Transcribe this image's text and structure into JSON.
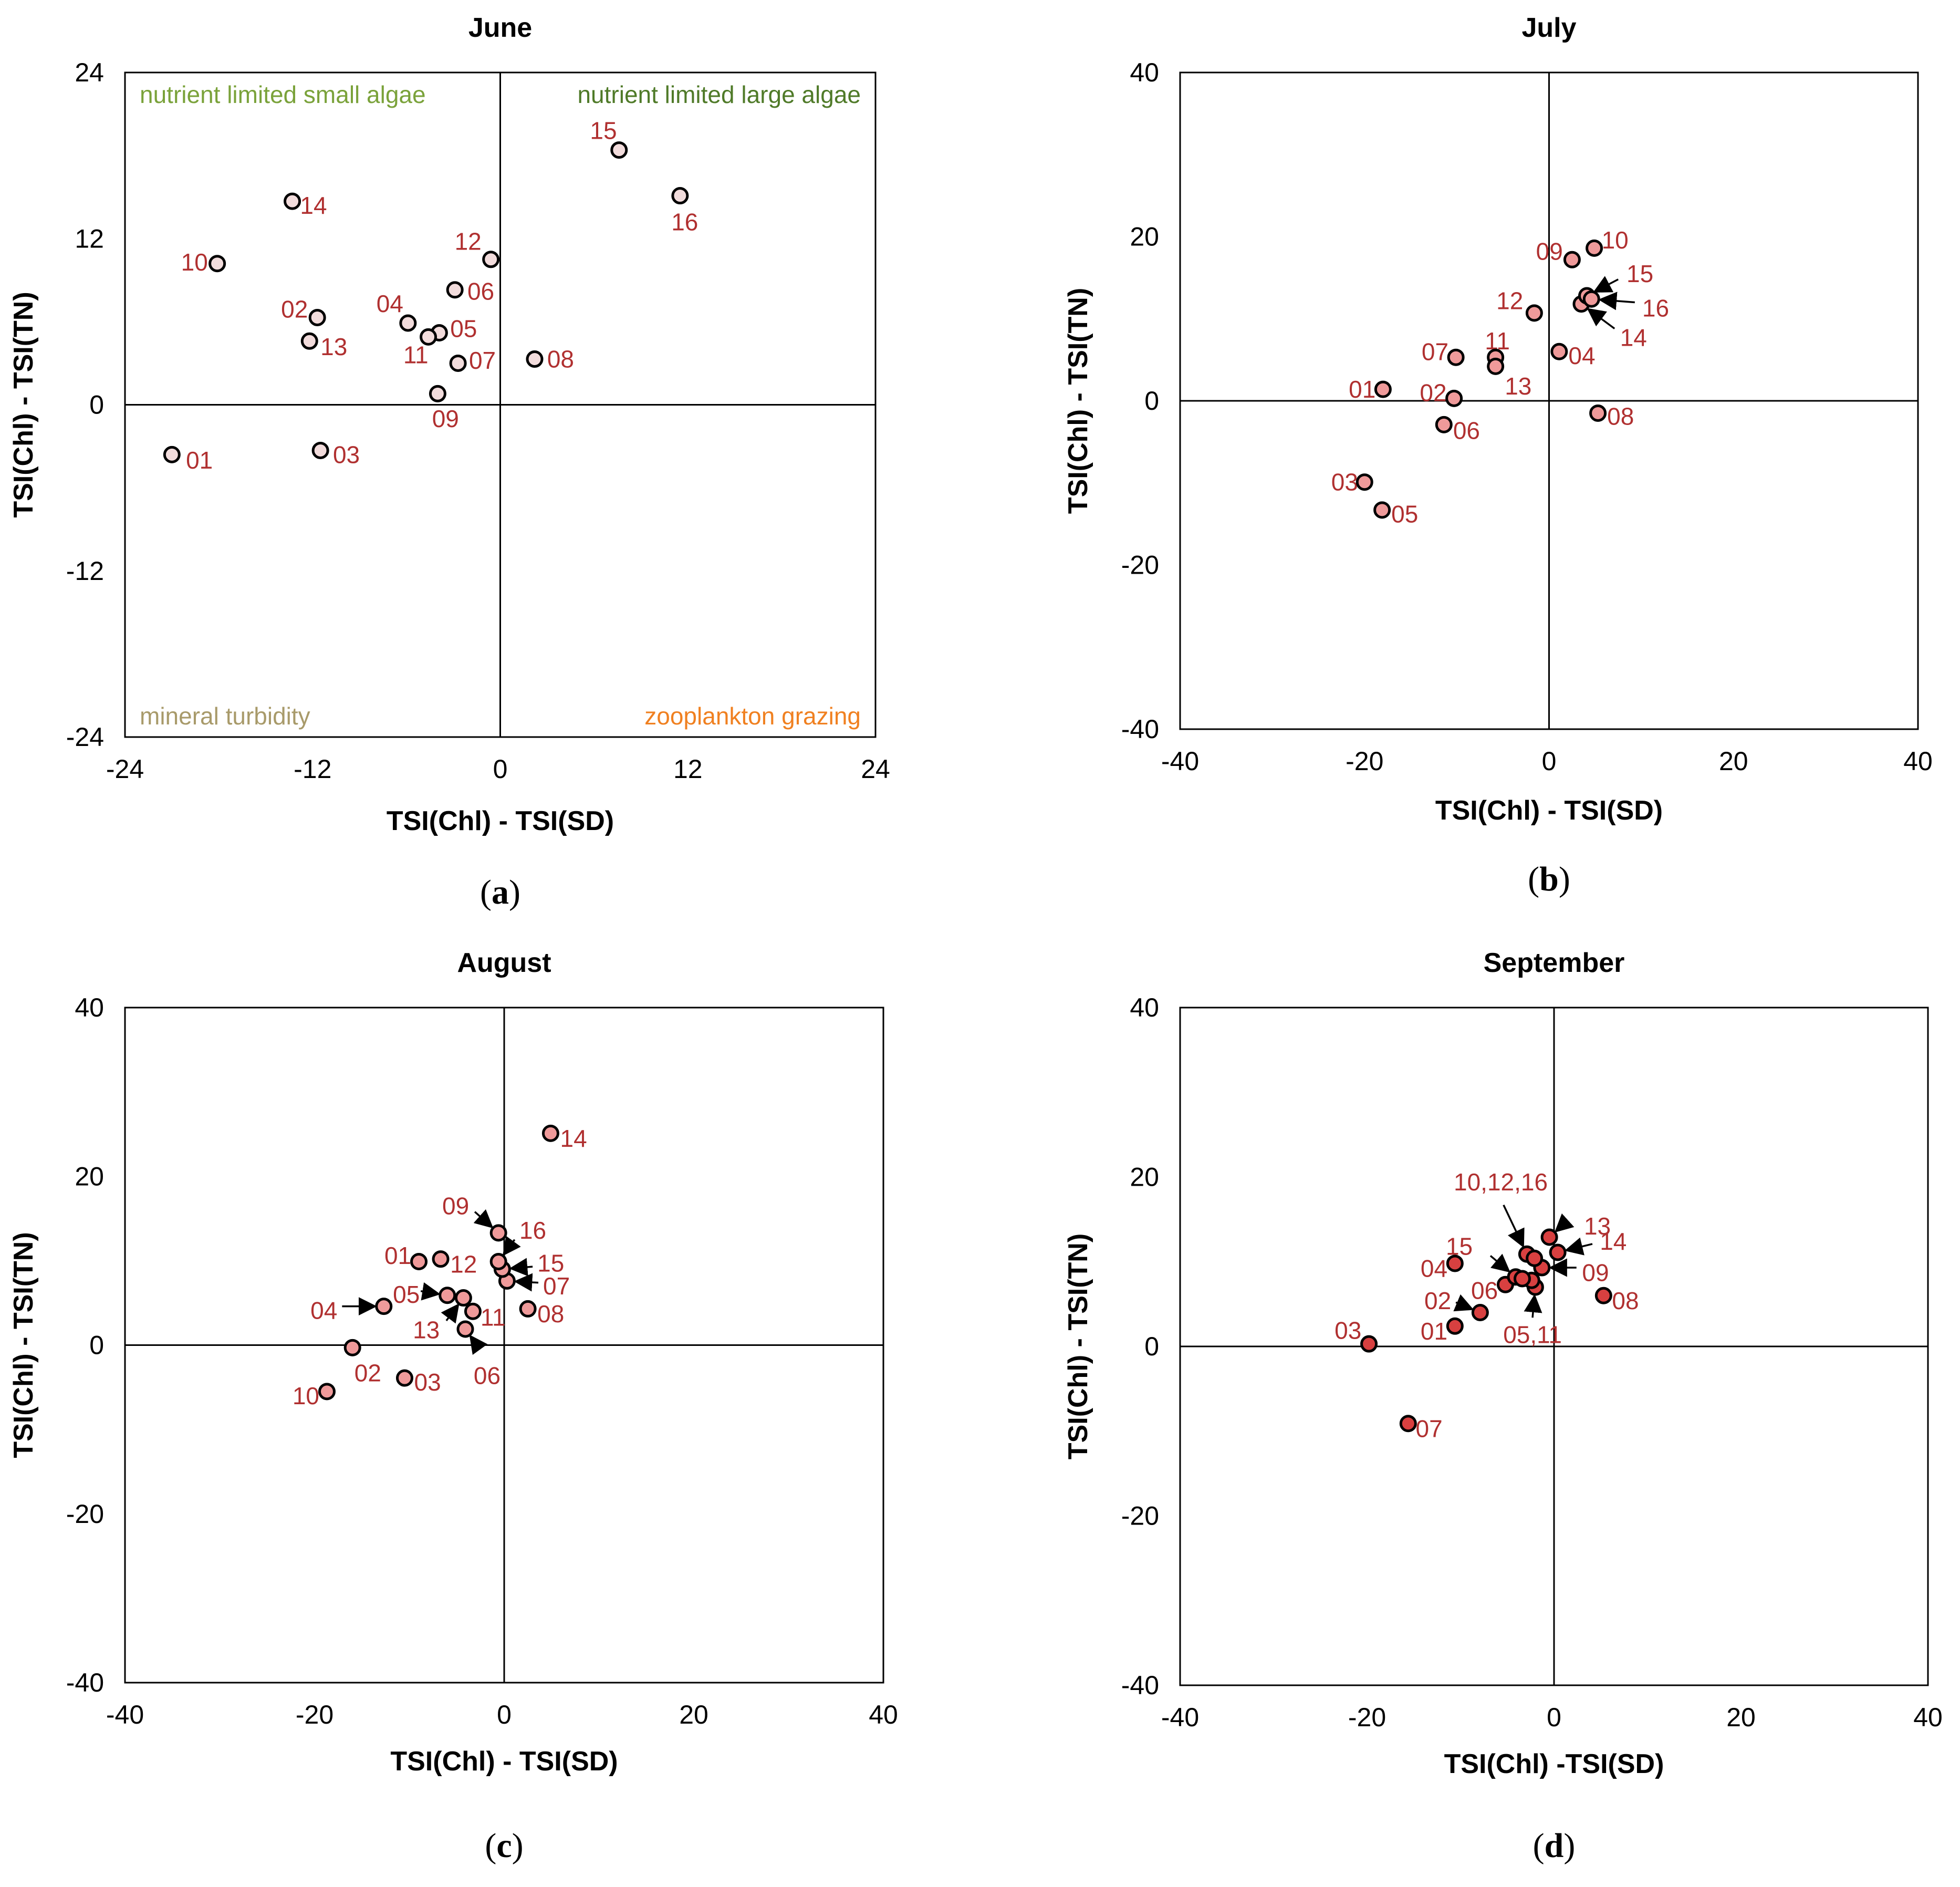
{
  "colors": {
    "frame": "#000000",
    "point_label": "#b03030",
    "quadrant_small_algae": "#7aa23a",
    "quadrant_large_algae": "#4f7a28",
    "quadrant_mineral": "#a89a6a",
    "quadrant_zooplankton": "#f08020"
  },
  "chart_data": [
    {
      "type": "scatter",
      "id": "a",
      "subfigure_label": "a",
      "title": "June",
      "xlabel": "TSI(Chl) - TSI(SD)",
      "ylabel": "TSI(Chl) - TSI(TN)",
      "xlim": [
        -24,
        24
      ],
      "ylim": [
        -24,
        24
      ],
      "xticks": [
        -24,
        -12,
        0,
        12,
        24
      ],
      "yticks": [
        -24,
        -12,
        0,
        12,
        24
      ],
      "marker_fill": "#f2dcdc",
      "quadrant_labels": [
        {
          "text": "nutrient limited small algae",
          "position": "top-left",
          "color": "#7aa23a"
        },
        {
          "text": "nutrient limited large algae",
          "position": "top-right",
          "color": "#4f7a28"
        },
        {
          "text": "mineral turbidity",
          "position": "bottom-left",
          "color": "#a89a6a"
        },
        {
          "text": "zooplankton grazing",
          "position": "bottom-right",
          "color": "#f08020"
        }
      ],
      "points": [
        {
          "label": "01",
          "x": -21.0,
          "y": -3.6,
          "lx": 0.9,
          "ly": -0.4,
          "anchor": "start"
        },
        {
          "label": "02",
          "x": -11.7,
          "y": 6.3,
          "lx": -0.6,
          "ly": 0.6,
          "anchor": "end"
        },
        {
          "label": "03",
          "x": -11.5,
          "y": -3.3,
          "lx": 0.8,
          "ly": -0.3,
          "anchor": "start"
        },
        {
          "label": "04",
          "x": -5.9,
          "y": 5.9,
          "lx": -0.3,
          "ly": 1.4,
          "anchor": "end"
        },
        {
          "label": "05",
          "x": -3.9,
          "y": 5.2,
          "lx": 0.7,
          "ly": 0.3,
          "anchor": "start"
        },
        {
          "label": "06",
          "x": -2.9,
          "y": 8.3,
          "lx": 0.8,
          "ly": -0.1,
          "anchor": "start"
        },
        {
          "label": "07",
          "x": -2.7,
          "y": 3.0,
          "lx": 0.7,
          "ly": 0.2,
          "anchor": "start"
        },
        {
          "label": "08",
          "x": 2.2,
          "y": 3.3,
          "lx": 0.8,
          "ly": 0.0,
          "anchor": "start"
        },
        {
          "label": "09",
          "x": -4.0,
          "y": 0.8,
          "lx": 0.5,
          "ly": -1.8,
          "anchor": "middle"
        },
        {
          "label": "10",
          "x": -18.1,
          "y": 10.2,
          "lx": -0.6,
          "ly": 0.1,
          "anchor": "end"
        },
        {
          "label": "11",
          "x": -4.6,
          "y": 4.9,
          "lx": -0.8,
          "ly": -1.3,
          "anchor": "middle"
        },
        {
          "label": "12",
          "x": -0.6,
          "y": 10.5,
          "lx": -0.6,
          "ly": 1.3,
          "anchor": "end"
        },
        {
          "label": "13",
          "x": -12.2,
          "y": 4.6,
          "lx": 0.7,
          "ly": -0.4,
          "anchor": "start"
        },
        {
          "label": "14",
          "x": -13.3,
          "y": 14.7,
          "lx": 0.5,
          "ly": -0.3,
          "anchor": "start"
        },
        {
          "label": "15",
          "x": 7.6,
          "y": 18.4,
          "lx": -1.0,
          "ly": 1.4,
          "anchor": "middle"
        },
        {
          "label": "16",
          "x": 11.5,
          "y": 15.1,
          "lx": 0.3,
          "ly": -1.9,
          "anchor": "middle"
        }
      ]
    },
    {
      "type": "scatter",
      "id": "b",
      "subfigure_label": "b",
      "title": "July",
      "xlabel": "TSI(Chl) - TSI(SD)",
      "ylabel": "TSI(Chl) - TSI(TN)",
      "xlim": [
        -40,
        40
      ],
      "ylim": [
        -40,
        40
      ],
      "xticks": [
        -40,
        -20,
        0,
        20,
        40
      ],
      "yticks": [
        -40,
        -20,
        0,
        20,
        40
      ],
      "marker_fill": "#ef9a9a",
      "quadrant_labels": [],
      "points": [
        {
          "label": "01",
          "x": -18.0,
          "y": 1.4,
          "lx": -0.8,
          "ly": 0.0,
          "anchor": "end"
        },
        {
          "label": "02",
          "x": -10.3,
          "y": 0.3,
          "lx": -0.8,
          "ly": 0.7,
          "anchor": "end"
        },
        {
          "label": "03",
          "x": -20.0,
          "y": -9.9,
          "lx": -0.7,
          "ly": 0.0,
          "anchor": "end"
        },
        {
          "label": "04",
          "x": 1.1,
          "y": 6.0,
          "lx": 1.0,
          "ly": -0.5,
          "anchor": "start"
        },
        {
          "label": "05",
          "x": -18.1,
          "y": -13.3,
          "lx": 1.0,
          "ly": -0.5,
          "anchor": "start"
        },
        {
          "label": "06",
          "x": -11.4,
          "y": -2.9,
          "lx": 1.0,
          "ly": -0.7,
          "anchor": "start"
        },
        {
          "label": "07",
          "x": -10.1,
          "y": 5.3,
          "lx": -0.8,
          "ly": 0.7,
          "anchor": "end"
        },
        {
          "label": "08",
          "x": 5.3,
          "y": -1.5,
          "lx": 1.0,
          "ly": -0.4,
          "anchor": "start"
        },
        {
          "label": "09",
          "x": 2.5,
          "y": 17.2,
          "lx": -1.0,
          "ly": 1.0,
          "anchor": "end"
        },
        {
          "label": "10",
          "x": 4.9,
          "y": 18.6,
          "lx": 0.8,
          "ly": 1.0,
          "anchor": "start"
        },
        {
          "label": "11",
          "x": -5.8,
          "y": 5.3,
          "lx": 0.2,
          "ly": 2.0,
          "anchor": "middle"
        },
        {
          "label": "12",
          "x": -1.6,
          "y": 10.7,
          "lx": -1.2,
          "ly": 1.5,
          "anchor": "end"
        },
        {
          "label": "13",
          "x": -5.8,
          "y": 4.2,
          "lx": 1.0,
          "ly": -2.4,
          "anchor": "start"
        },
        {
          "label": "14",
          "x": 3.5,
          "y": 11.8,
          "lx": 4.2,
          "ly": -4.1,
          "anchor": "start",
          "arrow": true,
          "ax": 3.6,
          "ay": -3.0
        },
        {
          "label": "15",
          "x": 4.1,
          "y": 12.8,
          "lx": 4.3,
          "ly": 2.7,
          "anchor": "start",
          "arrow": true,
          "ax": 3.4,
          "ay": 2.0
        },
        {
          "label": "16",
          "x": 4.6,
          "y": 12.4,
          "lx": 5.5,
          "ly": -1.1,
          "anchor": "start",
          "arrow": true,
          "ax": 4.7,
          "ay": -0.4
        }
      ]
    },
    {
      "type": "scatter",
      "id": "c",
      "subfigure_label": "c",
      "title": "August",
      "xlabel": "TSI(Chl) - TSI(SD)",
      "ylabel": "TSI(Chl) - TSI(TN)",
      "xlim": [
        -40,
        40
      ],
      "ylim": [
        -40,
        40
      ],
      "xticks": [
        -40,
        -20,
        0,
        20,
        40
      ],
      "yticks": [
        -40,
        -20,
        0,
        20,
        40
      ],
      "marker_fill": "#ef9a9a",
      "quadrant_labels": [],
      "points": [
        {
          "label": "01",
          "x": -9.0,
          "y": 9.9,
          "lx": -0.8,
          "ly": 0.7,
          "anchor": "end"
        },
        {
          "label": "02",
          "x": -16.0,
          "y": -0.3,
          "lx": 0.2,
          "ly": -3.0,
          "anchor": "start"
        },
        {
          "label": "03",
          "x": -10.5,
          "y": -3.9,
          "lx": 1.0,
          "ly": -0.5,
          "anchor": "start"
        },
        {
          "label": "04",
          "x": -12.7,
          "y": 4.6,
          "lx": -4.9,
          "ly": -0.5,
          "anchor": "end",
          "arrow": true,
          "ax": -4.4,
          "ay": 0.0
        },
        {
          "label": "05",
          "x": -6.0,
          "y": 5.9,
          "lx": -2.9,
          "ly": 0.1,
          "anchor": "end",
          "arrow": true,
          "ax": -2.8,
          "ay": 0.5
        },
        {
          "label": "06",
          "x": -4.1,
          "y": 1.9,
          "lx": 2.3,
          "ly": -5.5,
          "anchor": "middle",
          "arrow": true,
          "ax": 0.9,
          "ay": -1.4
        },
        {
          "label": "07",
          "x": 0.3,
          "y": 7.6,
          "lx": 3.8,
          "ly": -0.6,
          "anchor": "start",
          "arrow": true,
          "ax": 3.3,
          "ay": -0.2
        },
        {
          "label": "08",
          "x": 2.5,
          "y": 4.3,
          "lx": 1.0,
          "ly": -0.6,
          "anchor": "start"
        },
        {
          "label": "09",
          "x": -0.6,
          "y": 13.3,
          "lx": -3.1,
          "ly": 3.2,
          "anchor": "end",
          "arrow": true,
          "ax": -2.5,
          "ay": 2.5
        },
        {
          "label": "10",
          "x": -18.7,
          "y": -5.5,
          "lx": -0.8,
          "ly": -0.5,
          "anchor": "end"
        },
        {
          "label": "11",
          "x": -3.3,
          "y": 4.0,
          "lx": 0.8,
          "ly": -0.7,
          "anchor": "start"
        },
        {
          "label": "12",
          "x": -6.7,
          "y": 10.2,
          "lx": 1.0,
          "ly": -0.6,
          "anchor": "start"
        },
        {
          "label": "13",
          "x": -4.3,
          "y": 5.6,
          "lx": -2.5,
          "ly": -3.8,
          "anchor": "end",
          "arrow": true,
          "ax": -1.8,
          "ay": -2.7
        },
        {
          "label": "14",
          "x": 4.9,
          "y": 25.1,
          "lx": 1.0,
          "ly": -0.6,
          "anchor": "start"
        },
        {
          "label": "15",
          "x": -0.2,
          "y": 9.0,
          "lx": 3.7,
          "ly": 0.7,
          "anchor": "start",
          "arrow": true,
          "ax": 3.2,
          "ay": 0.3
        },
        {
          "label": "16",
          "x": -0.6,
          "y": 9.9,
          "lx": 2.2,
          "ly": 3.7,
          "anchor": "start",
          "arrow": true,
          "ax": 1.7,
          "ay": 2.6
        }
      ]
    },
    {
      "type": "scatter",
      "id": "d",
      "subfigure_label": "d",
      "title": "September",
      "xlabel": "TSI(Chl) -TSI(SD)",
      "ylabel": "TSI(Chl) - TSI(TN)",
      "xlim": [
        -40,
        40
      ],
      "ylim": [
        -40,
        40
      ],
      "xticks": [
        -40,
        -20,
        0,
        20,
        40
      ],
      "yticks": [
        -40,
        -20,
        0,
        20,
        40
      ],
      "marker_fill": "#d84040",
      "quadrant_labels": [],
      "points": [
        {
          "label": "01",
          "x": -10.6,
          "y": 2.4,
          "lx": -0.8,
          "ly": -0.6,
          "anchor": "end"
        },
        {
          "label": "02",
          "x": -7.9,
          "y": 4.0,
          "lx": -3.1,
          "ly": 1.4,
          "anchor": "end",
          "arrow": true,
          "ax": -2.6,
          "ay": 1.2
        },
        {
          "label": "03",
          "x": -19.8,
          "y": 0.3,
          "lx": -0.8,
          "ly": 1.6,
          "anchor": "end"
        },
        {
          "label": "04",
          "x": -10.6,
          "y": 9.8,
          "lx": -0.8,
          "ly": -0.6,
          "anchor": "end"
        },
        {
          "label": "05,11",
          "x": -2.0,
          "y": 7.0,
          "lx": -0.3,
          "ly": -5.6,
          "anchor": "middle",
          "arrow": true,
          "ax": -0.3,
          "ay": -3.6
        },
        {
          "label": "06",
          "x": -5.2,
          "y": 7.3,
          "lx": -0.8,
          "ly": -0.7,
          "anchor": "end"
        },
        {
          "label": "07",
          "x": -15.6,
          "y": -9.1,
          "lx": 0.8,
          "ly": -0.6,
          "anchor": "start"
        },
        {
          "label": "08",
          "x": 5.3,
          "y": 6.0,
          "lx": 0.9,
          "ly": -0.6,
          "anchor": "start"
        },
        {
          "label": "09",
          "x": -1.3,
          "y": 9.3,
          "lx": 4.3,
          "ly": -0.6,
          "anchor": "start",
          "arrow": true,
          "ax": 3.7,
          "ay": 0.0
        },
        {
          "label": "10,12,16",
          "x": -2.9,
          "y": 10.9,
          "lx": -2.8,
          "ly": 8.5,
          "anchor": "middle",
          "arrow": true,
          "ax": -2.5,
          "ay": 5.8
        },
        {
          "label": "13",
          "x": -0.5,
          "y": 12.9,
          "lx": 3.7,
          "ly": 1.3,
          "anchor": "start",
          "arrow": true,
          "ax": 1.0,
          "ay": 1.0
        },
        {
          "label": "14",
          "x": 0.4,
          "y": 11.1,
          "lx": 4.5,
          "ly": 1.3,
          "anchor": "start",
          "arrow": true,
          "ax": 3.7,
          "ay": 1.0
        },
        {
          "label": "15",
          "x": -4.1,
          "y": 8.2,
          "lx": -4.6,
          "ly": 3.6,
          "anchor": "end",
          "arrow": true,
          "ax": -2.7,
          "ay": 2.5
        },
        {
          "label": "-",
          "x": -2.1,
          "y": 10.4,
          "lx": 0,
          "ly": 0,
          "anchor": "start",
          "hidden_label": true
        },
        {
          "label": "-",
          "x": -2.4,
          "y": 7.8,
          "lx": 0,
          "ly": 0,
          "anchor": "start",
          "hidden_label": true
        },
        {
          "label": "-",
          "x": -3.4,
          "y": 8.0,
          "lx": 0,
          "ly": 0,
          "anchor": "start",
          "hidden_label": true
        }
      ]
    }
  ]
}
